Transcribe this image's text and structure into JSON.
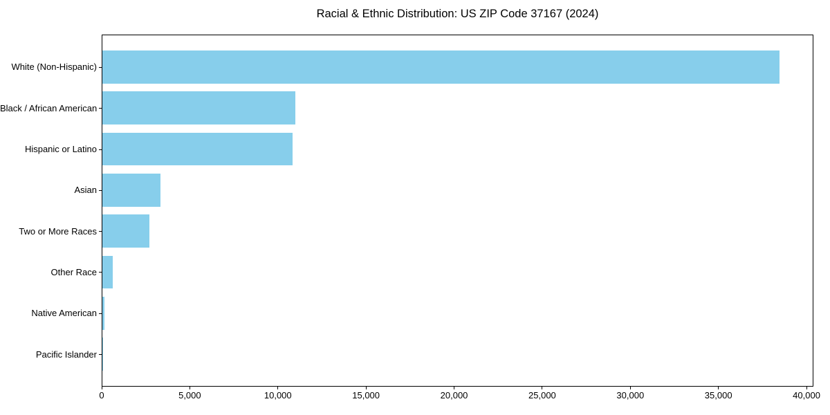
{
  "chart_data": {
    "type": "bar",
    "orientation": "horizontal",
    "title": "Racial & Ethnic Distribution: US ZIP Code 37167 (2024)",
    "categories": [
      "White (Non-Hispanic)",
      "Black / African American",
      "Hispanic or Latino",
      "Asian",
      "Two or More Races",
      "Other Race",
      "Native American",
      "Pacific Islander"
    ],
    "values": [
      38420,
      10950,
      10810,
      3280,
      2670,
      590,
      130,
      40
    ],
    "bar_color": "#87CEEB",
    "xlabel": "",
    "ylabel": "",
    "xlim": [
      0,
      40390
    ],
    "xticks": [
      0,
      5000,
      10000,
      15000,
      20000,
      25000,
      30000,
      35000,
      40000
    ],
    "xtick_labels": [
      "0",
      "5,000",
      "10,000",
      "15,000",
      "20,000",
      "25,000",
      "30,000",
      "35,000",
      "40,000"
    ],
    "grid": false,
    "legend_position": "none",
    "text_color": "#000000",
    "background_color": "#ffffff"
  }
}
